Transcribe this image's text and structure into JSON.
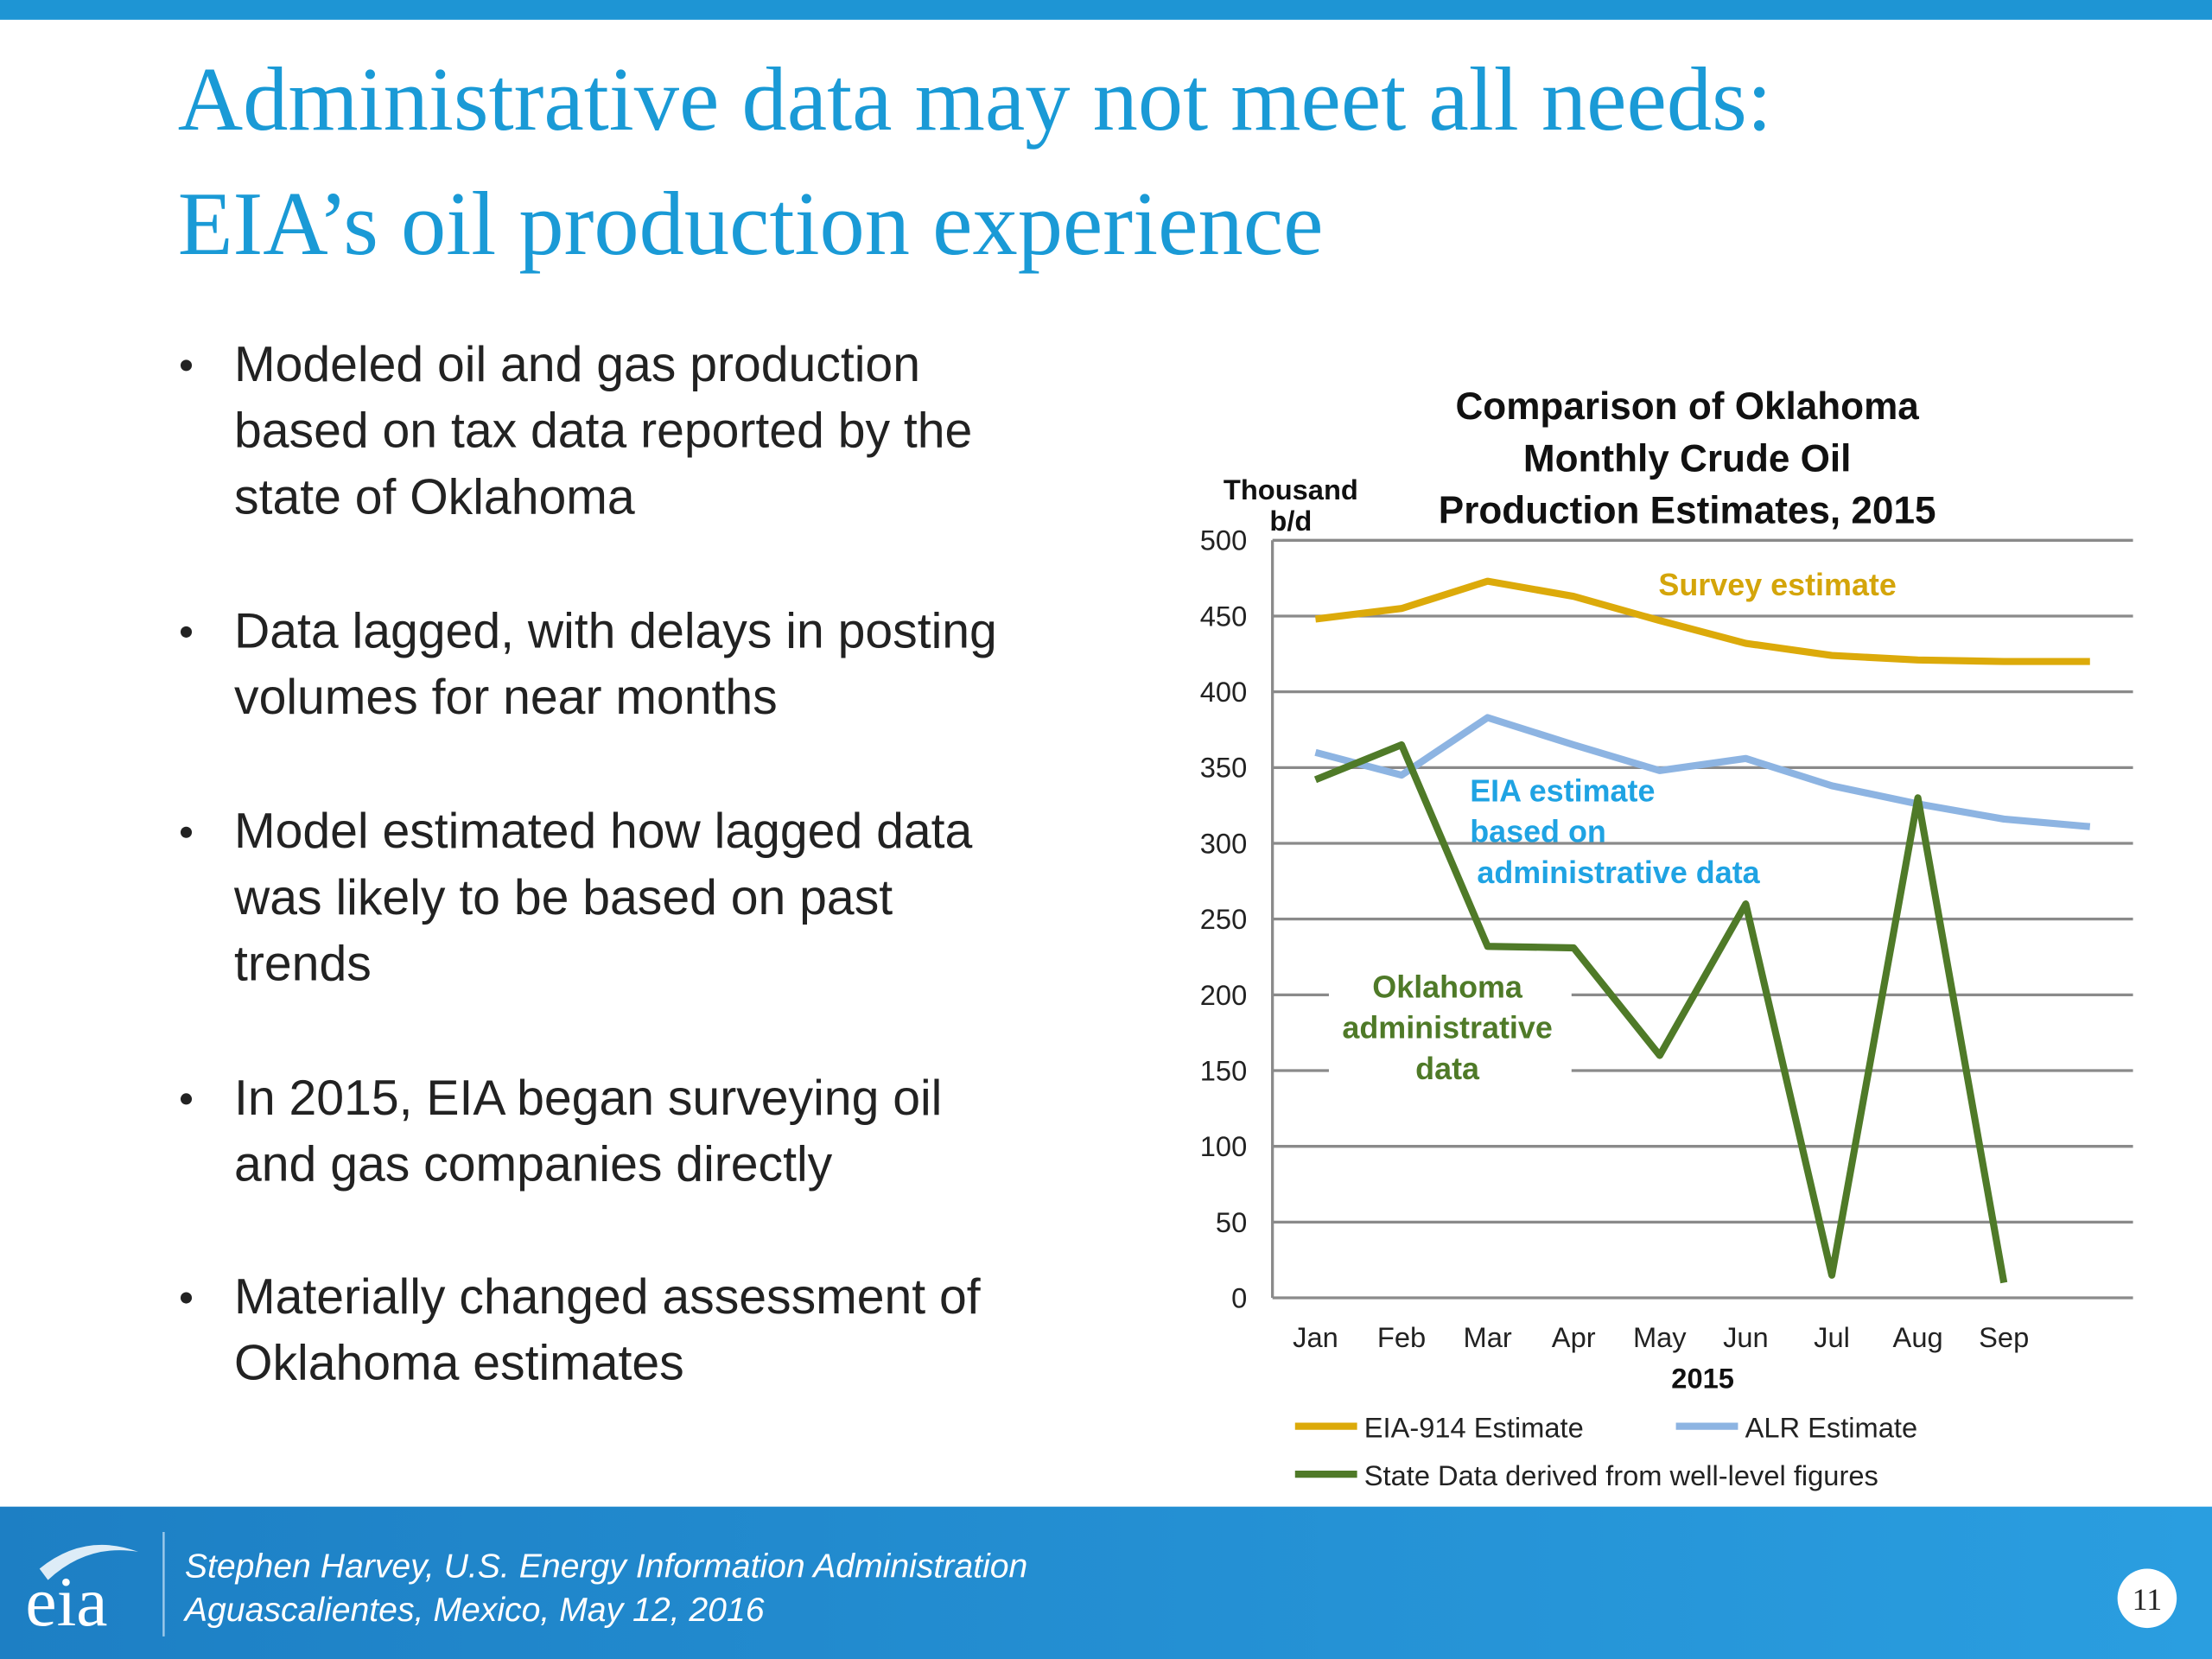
{
  "header": {
    "title": [
      "Administrative data may not meet all needs:",
      "EIA’s oil production experience"
    ]
  },
  "bullets": [
    [
      "Modeled oil and gas production",
      "based on tax data reported by the",
      "state of Oklahoma"
    ],
    [
      "Data lagged, with delays in posting",
      "volumes for near months"
    ],
    [
      "Model estimated how lagged data",
      "was likely to be based on past",
      "trends"
    ],
    [
      "In 2015, EIA began surveying oil",
      "and gas companies directly"
    ],
    [
      "Materially changed assessment of",
      "Oklahoma estimates"
    ]
  ],
  "chart_data": {
    "type": "line",
    "title": [
      "Comparison of Oklahoma",
      "Monthly Crude Oil",
      "Production Estimates, 2015"
    ],
    "ylabel": [
      "Thousand",
      "b/d"
    ],
    "xlabel": "2015",
    "categories": [
      "Jan",
      "Feb",
      "Mar",
      "Apr",
      "May",
      "Jun",
      "Jul",
      "Aug",
      "Sep",
      null
    ],
    "series": [
      {
        "name": "EIA-914 Estimate",
        "color": "#dcaa0a",
        "values": [
          448,
          455,
          473,
          463,
          447,
          432,
          424,
          421,
          420,
          420
        ]
      },
      {
        "name": "ALR Estimate",
        "color": "#8db4e2",
        "values": [
          360,
          345,
          383,
          365,
          348,
          356,
          338,
          326,
          316,
          311
        ]
      },
      {
        "name": "State Data derived from well-level figures",
        "color": "#4f7a28",
        "values": [
          342,
          365,
          232,
          231,
          160,
          260,
          15,
          330,
          10,
          null
        ]
      }
    ],
    "annotations": [
      {
        "text": [
          "Survey estimate"
        ],
        "color": "#d4a50a"
      },
      {
        "text": [
          "EIA estimate",
          "based on",
          "administrative data"
        ],
        "color": "#1fa3e3"
      },
      {
        "text": [
          "Oklahoma",
          "administrative",
          "data"
        ],
        "color": "#4f7a28"
      }
    ],
    "ylim": [
      0,
      500
    ],
    "yticks": [
      0,
      50,
      100,
      150,
      200,
      250,
      300,
      350,
      400,
      450,
      500
    ],
    "grid": true
  },
  "footer": {
    "logo": "eia",
    "lines": [
      "Stephen Harvey, U.S. Energy Information Administration",
      "Aguascalientes, Mexico, May 12, 2016"
    ],
    "page": "11"
  }
}
